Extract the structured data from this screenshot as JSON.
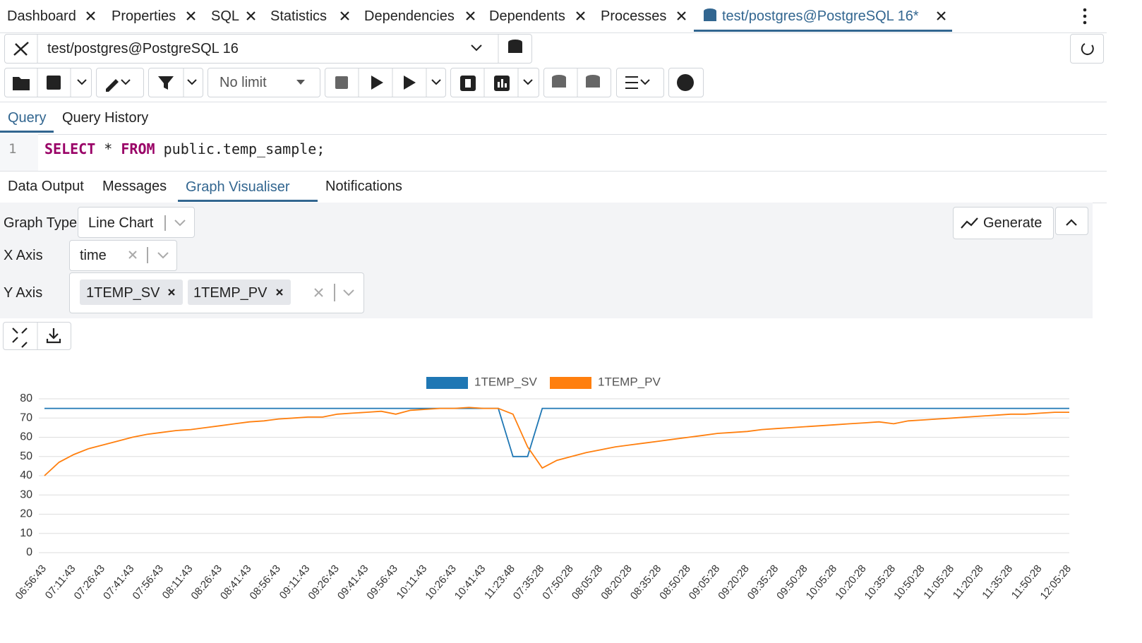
{
  "tabs": [
    "Dashboard",
    "Properties",
    "SQL",
    "Statistics",
    "Dependencies",
    "Dependents",
    "Processes",
    "test/postgres@PostgreSQL 16*"
  ],
  "connection": "test/postgres@PostgreSQL 16",
  "row_limit": "No limit",
  "query_tabs": [
    "Query",
    "Query History"
  ],
  "editor": {
    "line_number": "1",
    "keyword_select": "SELECT",
    "star": "*",
    "keyword_from": "FROM",
    "table": "public.temp_sample;"
  },
  "result_tabs": [
    "Data Output",
    "Messages",
    "Graph Visualiser",
    "Notifications"
  ],
  "graph_options": {
    "graph_type_label": "Graph Type",
    "graph_type": "Line Chart",
    "x_axis_label": "X Axis",
    "x_axis": "time",
    "y_axis_label": "Y Axis",
    "y_axis": [
      "1TEMP_SV",
      "1TEMP_PV"
    ],
    "generate": "Generate"
  },
  "chart_data": {
    "type": "line",
    "categories": [
      "06:56:43",
      null,
      "07:11:43",
      null,
      "07:26:43",
      null,
      "07:41:43",
      null,
      "07:56:43",
      null,
      "08:11:43",
      null,
      "08:26:43",
      null,
      "08:41:43",
      null,
      "08:56:43",
      null,
      "09:11:43",
      null,
      "09:26:43",
      null,
      "09:41:43",
      null,
      "09:56:43",
      null,
      "10:11:43",
      null,
      "10:26:43",
      null,
      "10:41:43",
      null,
      "11:23:48",
      null,
      "07:35:28",
      null,
      "07:50:28",
      null,
      "08:05:28",
      null,
      "08:20:28",
      null,
      "08:35:28",
      null,
      "08:50:28",
      null,
      "09:05:28",
      null,
      "09:20:28",
      null,
      "09:35:28",
      null,
      "09:50:28",
      null,
      "10:05:28",
      null,
      "10:20:28",
      null,
      "10:35:28",
      null,
      "10:50:28",
      null,
      "11:05:28",
      null,
      "11:20:28",
      null,
      "11:35:28",
      null,
      "11:50:28",
      null,
      "12:05:28"
    ],
    "series": [
      {
        "name": "1TEMP_SV",
        "color": "#1f77b4",
        "values": [
          75,
          75,
          75,
          75,
          75,
          75,
          75,
          75,
          75,
          75,
          75,
          75,
          75,
          75,
          75,
          75,
          75,
          75,
          75,
          75,
          75,
          75,
          75,
          75,
          75,
          75,
          75,
          75,
          75,
          75,
          75,
          75,
          50,
          50,
          75,
          75,
          75,
          75,
          75,
          75,
          75,
          75,
          75,
          75,
          75,
          75,
          75,
          75,
          75,
          75,
          75,
          75,
          75,
          75,
          75,
          75,
          75,
          75,
          75,
          75,
          75,
          75,
          75,
          75,
          75,
          75,
          75,
          75,
          75,
          75,
          75
        ]
      },
      {
        "name": "1TEMP_PV",
        "color": "#ff7f0e",
        "values": [
          40,
          47,
          51,
          54,
          56,
          58,
          60,
          61.5,
          62.5,
          63.5,
          64,
          65,
          66,
          67,
          68,
          68.5,
          69.5,
          70,
          70.5,
          70.5,
          72,
          72.5,
          73,
          73.5,
          72,
          74,
          74.5,
          75,
          75,
          75.5,
          75,
          75,
          72,
          55,
          44,
          48,
          50,
          52,
          53.5,
          55,
          56,
          57,
          58,
          59,
          60,
          61,
          62,
          62.5,
          63,
          64,
          64.5,
          65,
          65.5,
          66,
          66.5,
          67,
          67.5,
          68,
          67,
          68.5,
          69,
          69.5,
          70,
          70.5,
          71,
          71.5,
          72,
          72,
          72.5,
          73,
          73
        ]
      }
    ],
    "ylim": [
      0,
      80
    ],
    "yticks": [
      0,
      10,
      20,
      30,
      40,
      50,
      60,
      70,
      80
    ],
    "grid": true,
    "legend": "top"
  }
}
